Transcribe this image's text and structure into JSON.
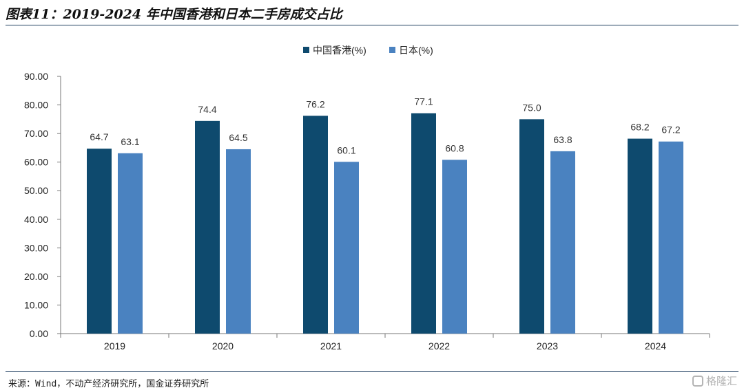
{
  "header": {
    "title": "图表11：2019-2024 年中国香港和日本二手房成交占比"
  },
  "footer": {
    "source": "来源：Wind，不动产经济研究所，国金证券研究所",
    "watermark": "格隆汇"
  },
  "colors": {
    "series_hk": "#0e4a6e",
    "series_jp": "#4a82c0",
    "axis": "#777777",
    "rule": "#1a3a5c"
  },
  "chart_data": {
    "type": "bar",
    "title": "",
    "xlabel": "",
    "ylabel": "",
    "categories": [
      "2019",
      "2020",
      "2021",
      "2022",
      "2023",
      "2024"
    ],
    "series": [
      {
        "name": "中国香港(%)",
        "values": [
          64.7,
          74.4,
          76.2,
          77.1,
          75.0,
          68.2
        ],
        "labels": [
          "64.7",
          "74.4",
          "76.2",
          "77.1",
          "75.0",
          "68.2"
        ]
      },
      {
        "name": "日本(%)",
        "values": [
          63.1,
          64.5,
          60.1,
          60.8,
          63.8,
          67.2
        ],
        "labels": [
          "63.1",
          "64.5",
          "60.1",
          "60.8",
          "63.8",
          "67.2"
        ]
      }
    ],
    "ylim": [
      0,
      90
    ],
    "yticks": [
      "0.00",
      "10.00",
      "20.00",
      "30.00",
      "40.00",
      "50.00",
      "60.00",
      "70.00",
      "80.00",
      "90.00"
    ],
    "grid": false,
    "legend_position": "top-center"
  }
}
